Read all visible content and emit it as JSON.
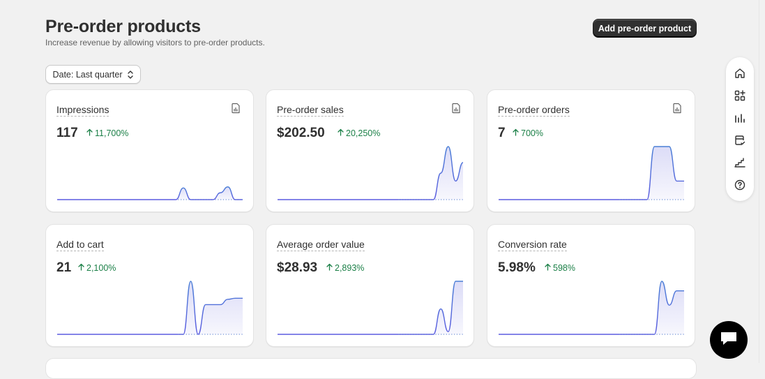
{
  "header": {
    "title": "Pre-order products",
    "subtitle": "Increase revenue by allowing visitors to pre-order products.",
    "primary_action": "Add pre-order product"
  },
  "filter": {
    "date_label": "Date: Last quarter"
  },
  "colors": {
    "accent": "#303030",
    "positive": "#1a7f46",
    "line": "#5b5be0",
    "fill": "#ebebfb"
  },
  "cards": [
    {
      "title": "Impressions",
      "value": "117",
      "change": "11,700%",
      "has_icon": true,
      "series": [
        0,
        0,
        0,
        0,
        0,
        0,
        0,
        0,
        0,
        0,
        0,
        0,
        0,
        0,
        0,
        0,
        0,
        0.22,
        0,
        0,
        0,
        0,
        0.13,
        0.24,
        0,
        0
      ]
    },
    {
      "title": "Pre-order sales",
      "value": "$202.50",
      "change": "20,250%",
      "has_icon": true,
      "series": [
        0,
        0,
        0,
        0,
        0,
        0,
        0,
        0,
        0,
        0,
        0,
        0,
        0,
        0,
        0,
        0,
        0,
        0,
        0,
        0,
        0,
        0,
        0.5,
        1,
        0.35,
        0.7
      ]
    },
    {
      "title": "Pre-order orders",
      "value": "7",
      "change": "700%",
      "has_icon": true,
      "series": [
        0,
        0,
        0,
        0,
        0,
        0,
        0,
        0,
        0,
        0,
        0,
        0,
        0,
        0,
        0,
        0,
        0,
        0,
        0,
        0,
        0,
        1,
        1,
        1,
        0.35,
        0.35
      ]
    },
    {
      "title": "Add to cart",
      "value": "21",
      "change": "2,100%",
      "has_icon": false,
      "series": [
        0,
        0,
        0,
        0,
        0,
        0,
        0,
        0,
        0,
        0,
        0,
        0,
        0,
        0,
        0,
        0,
        0,
        0,
        1,
        0,
        0.56,
        0.56,
        0.56,
        0.66,
        0.68,
        0.68
      ]
    },
    {
      "title": "Average order value",
      "value": "$28.93",
      "change": "2,893%",
      "has_icon": false,
      "series": [
        0,
        0,
        0,
        0,
        0,
        0,
        0,
        0,
        0,
        0,
        0,
        0,
        0,
        0,
        0,
        0,
        0,
        0,
        0,
        0,
        0,
        0,
        0.48,
        0.05,
        1,
        1
      ]
    },
    {
      "title": "Conversion rate",
      "value": "5.98%",
      "change": "598%",
      "has_icon": false,
      "series": [
        0,
        0,
        0,
        0,
        0,
        0,
        0,
        0,
        0,
        0,
        0,
        0,
        0,
        0,
        0,
        0,
        0,
        0,
        0,
        0,
        0,
        0,
        1,
        0.55,
        0.82,
        0.82
      ]
    }
  ],
  "rail": [
    "home-icon",
    "apps-add-icon",
    "bar-chart-icon",
    "document-check-icon",
    "stairs-icon",
    "help-icon"
  ],
  "chat": {
    "icon": "chat-icon"
  }
}
